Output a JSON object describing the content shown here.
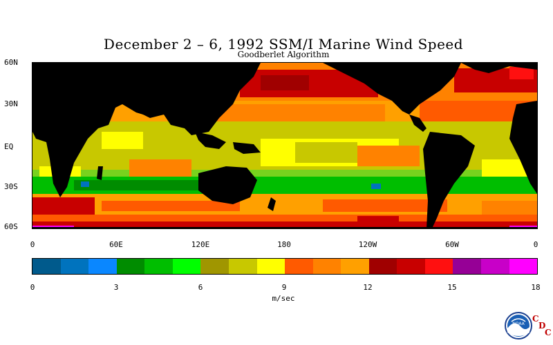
{
  "title": "December 2 – 6, 1992 SSM/I Marine Wind Speed",
  "subtitle": "Goodberlet Algorithm",
  "lat_labels": [
    "60N",
    "30N",
    "EQ",
    "30S",
    "60S"
  ],
  "lon_labels": [
    "0",
    "60E",
    "120E",
    "180",
    "120W",
    "60W",
    "0"
  ],
  "colorbar": {
    "unit": "m/sec",
    "ticks": [
      "0",
      "3",
      "6",
      "9",
      "12",
      "15",
      "18"
    ],
    "colors": [
      "#005a8c",
      "#0073be",
      "#0a87ff",
      "#008c00",
      "#00be00",
      "#00ff00",
      "#a09600",
      "#c8c800",
      "#ffff00",
      "#ff5a00",
      "#ff8200",
      "#ffa000",
      "#a00000",
      "#c80000",
      "#ff1010",
      "#960096",
      "#c800c8",
      "#ff00ff"
    ]
  },
  "map_colors": {
    "land": "#000000",
    "ocean_base": "#78d21e"
  },
  "logo": {
    "text": "NOAA",
    "letters": [
      "C",
      "D",
      "C"
    ]
  }
}
